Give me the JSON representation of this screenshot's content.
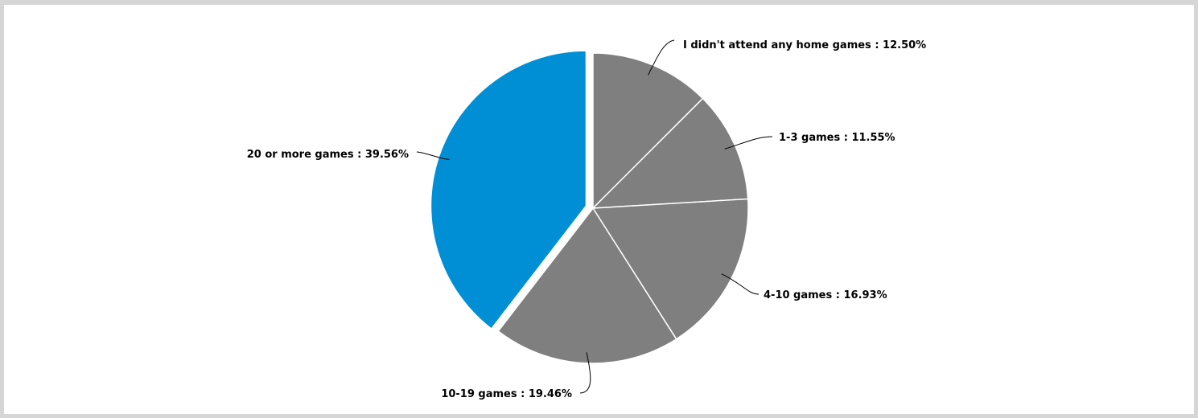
{
  "chart_data": {
    "type": "pie",
    "title": "",
    "slices": [
      {
        "label": "I didn't attend any home games",
        "value": 12.5,
        "display": "I didn't attend any home games : 12.50%",
        "color": "#7f7f7f",
        "exploded": false
      },
      {
        "label": "1-3 games",
        "value": 11.55,
        "display": "1-3 games : 11.55%",
        "color": "#7f7f7f",
        "exploded": false
      },
      {
        "label": "4-10 games",
        "value": 16.93,
        "display": "4-10 games : 16.93%",
        "color": "#7f7f7f",
        "exploded": false
      },
      {
        "label": "10-19 games",
        "value": 19.46,
        "display": "10-19 games : 19.46%",
        "color": "#7f7f7f",
        "exploded": false
      },
      {
        "label": "20 or more games",
        "value": 39.56,
        "display": "20 or more games : 39.56%",
        "color": "#008fd5",
        "exploded": true
      }
    ],
    "legend": "none",
    "label_style": "outside with leader lines",
    "start_direction": "top, clockwise"
  }
}
